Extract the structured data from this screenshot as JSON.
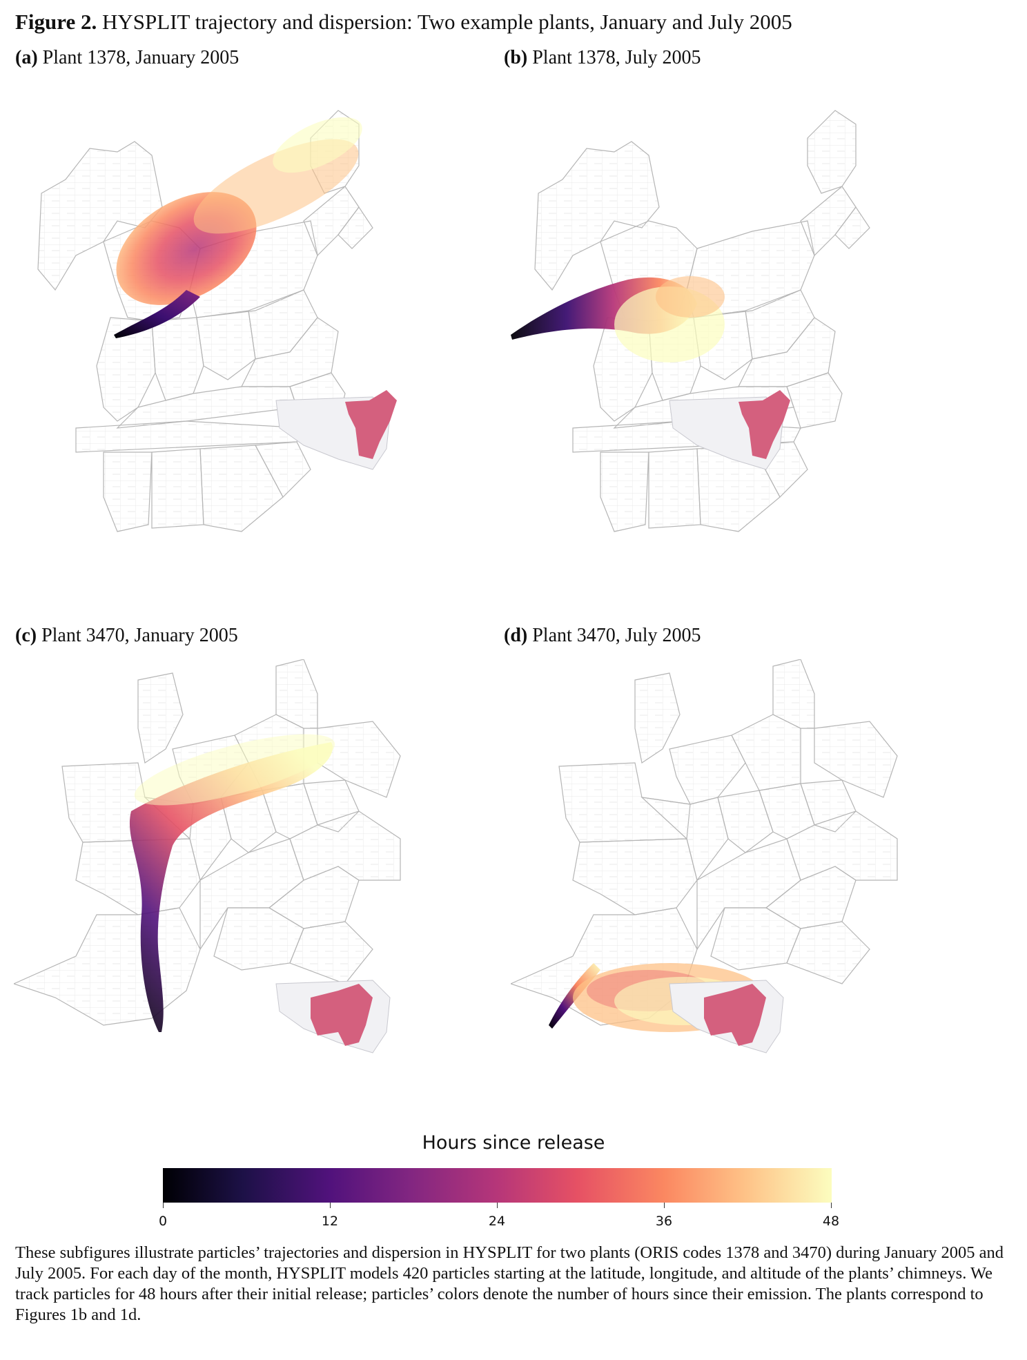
{
  "figure": {
    "title_bold": "Figure 2.",
    "title_rest": "HYSPLIT trajectory and dispersion: Two example plants, January and July 2005"
  },
  "panels": [
    {
      "tag": "(a)",
      "label": "Plant 1378, January 2005",
      "region": "northeast",
      "plume": "northeast"
    },
    {
      "tag": "(b)",
      "label": "Plant 1378, July 2005",
      "region": "northeast",
      "plume": "east"
    },
    {
      "tag": "(c)",
      "label": "Plant 3470, January 2005",
      "region": "south",
      "plume": "north"
    },
    {
      "tag": "(d)",
      "label": "Plant 3470, July 2005",
      "region": "south",
      "plume": "local-east"
    }
  ],
  "legend": {
    "title": "Hours since release",
    "ticks": [
      "0",
      "12",
      "24",
      "36",
      "48"
    ],
    "range": [
      0,
      48
    ],
    "colormap": "magma"
  },
  "caption": "These subfigures illustrate particles’ trajectories and dispersion in HYSPLIT for two plants (ORIS codes 1378 and 3470) during January 2005 and July 2005. For each day of the month, HYSPLIT models 420 particles starting at the latitude, longitude, and altitude of the plants’ chimneys. We track particles for 48 hours after their initial release; particles’ colors denote the number of hours since their emission. The plants correspond to Figures 1b and 1d.",
  "colors": {
    "state_fill": "#ffffff",
    "state_stroke": "#b5b5b5",
    "inset_land": "#f1f1f4",
    "inset_highlight": "#d4607e"
  }
}
